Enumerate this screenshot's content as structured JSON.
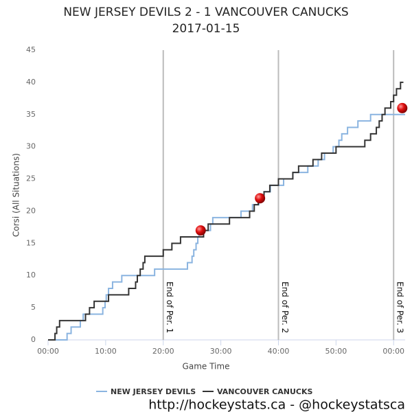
{
  "chart_data": {
    "type": "step-line",
    "title": "NEW JERSEY DEVILS 2 - 1 VANCOUVER CANUCKS",
    "subtitle": "2017-01-15",
    "x_label": "Game Time",
    "y_label": "Corsi (All Situations)",
    "xlim": [
      0,
      62
    ],
    "ylim": [
      0,
      45
    ],
    "xticks": [
      {
        "value": 0,
        "label": "00:00"
      },
      {
        "value": 10,
        "label": "10:00"
      },
      {
        "value": 20,
        "label": "20:00"
      },
      {
        "value": 30,
        "label": "30:00"
      },
      {
        "value": 40,
        "label": "40:00"
      },
      {
        "value": 50,
        "label": "50:00"
      },
      {
        "value": 60,
        "label": "00:00"
      }
    ],
    "yticks": [
      0,
      5,
      10,
      15,
      20,
      25,
      30,
      35,
      40,
      45
    ],
    "grid": false,
    "legend": "bottom",
    "series": [
      {
        "name": "NEW JERSEY DEVILS",
        "color": "#8ab4e0",
        "x": [
          0,
          3.3,
          4.0,
          5.6,
          6.1,
          9.5,
          9.9,
          10.1,
          10.5,
          11.2,
          12.8,
          18.5,
          24.2,
          25.0,
          25.3,
          25.7,
          26.0,
          26.2,
          28.2,
          28.6,
          33.5,
          35.5,
          36.6,
          37.5,
          38.6,
          40.9,
          42.5,
          45.1,
          46.9,
          48.0,
          49.5,
          50.5,
          51.0,
          52.0,
          53.8,
          56.0,
          57.7,
          62
        ],
        "values": [
          0,
          1,
          2,
          3,
          4,
          5,
          6,
          7,
          8,
          9,
          10,
          11,
          12,
          13,
          14,
          15,
          16,
          17,
          18,
          19,
          20,
          21,
          22,
          23,
          24,
          25,
          26,
          27,
          28,
          29,
          30,
          31,
          32,
          33,
          34,
          35,
          35,
          35
        ]
      },
      {
        "name": "VANCOUVER CANUCKS",
        "color": "#333333",
        "x": [
          0,
          1.2,
          1.5,
          2.0,
          6.5,
          7.2,
          8.0,
          10.5,
          14.0,
          15.2,
          15.5,
          16.0,
          16.5,
          16.8,
          20.0,
          21.5,
          23.0,
          27.0,
          27.8,
          31.5,
          35.0,
          35.8,
          36.5,
          37.5,
          38.5,
          40.0,
          42.5,
          43.5,
          46.0,
          47.5,
          50.0,
          55.0,
          56.0,
          57.0,
          57.5,
          58.0,
          58.5,
          59.5,
          60.0,
          60.5,
          61.2,
          61.7
        ],
        "values": [
          0,
          1,
          2,
          3,
          4,
          5,
          6,
          7,
          8,
          9,
          10,
          11,
          12,
          13,
          14,
          15,
          16,
          17,
          18,
          19,
          20,
          21,
          22,
          23,
          24,
          25,
          26,
          27,
          28,
          29,
          30,
          31,
          32,
          33,
          34,
          35,
          36,
          37,
          38,
          39,
          40,
          40
        ]
      }
    ],
    "goals": {
      "color": "#dd1111",
      "x": [
        26.5,
        36.8,
        61.5
      ],
      "values": [
        17,
        22,
        36
      ]
    },
    "annotations": [
      {
        "x": 20,
        "label": "End of Per. 1"
      },
      {
        "x": 40,
        "label": "End of Per. 2"
      },
      {
        "x": 60,
        "label": "End of Per. 3"
      }
    ]
  },
  "footer": "http://hockeystats.ca - @hockeystatsca"
}
